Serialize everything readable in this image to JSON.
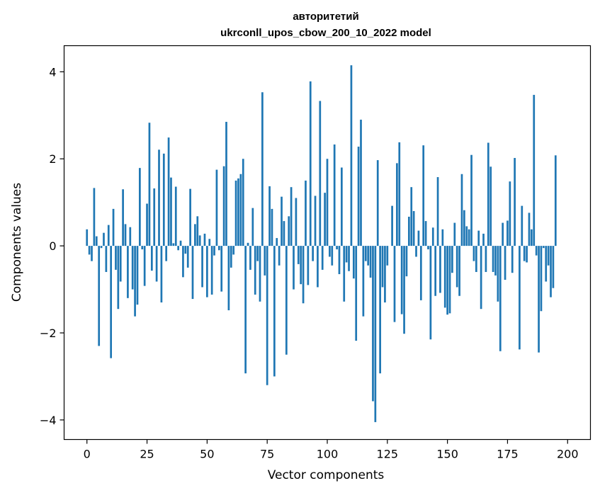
{
  "chart_data": {
    "type": "bar",
    "title": "авторитетий",
    "subtitle": "ukrconll_upos_cbow_200_10_2022 model",
    "xlabel": "Vector components",
    "ylabel": "Components values",
    "xlim": [
      -9.5,
      209.5
    ],
    "ylim": [
      -4.45,
      4.6
    ],
    "xticks": [
      0,
      25,
      50,
      75,
      100,
      125,
      150,
      175,
      200
    ],
    "yticks": [
      -4,
      -2,
      0,
      2,
      4
    ],
    "ytick_labels": [
      "−4",
      "−2",
      "0",
      "2",
      "4"
    ],
    "grid": false,
    "bar_color": "#1f77b4",
    "values": [
      0.38,
      -0.2,
      -0.35,
      1.33,
      0.22,
      -2.3,
      -0.05,
      0.3,
      -0.6,
      0.48,
      -2.58,
      0.85,
      -0.55,
      -1.45,
      -0.82,
      1.3,
      0.5,
      -1.2,
      0.43,
      -1.0,
      -1.62,
      -1.35,
      1.79,
      -0.08,
      -0.92,
      0.97,
      2.83,
      -0.57,
      1.32,
      -0.82,
      2.21,
      -1.3,
      2.12,
      -0.35,
      2.49,
      1.57,
      0.06,
      1.36,
      -0.1,
      0.12,
      -0.72,
      -0.18,
      -0.5,
      1.31,
      -1.22,
      0.5,
      0.68,
      0.24,
      -0.95,
      0.28,
      -1.18,
      0.16,
      -1.12,
      -0.22,
      1.75,
      -0.1,
      -1.05,
      1.83,
      2.85,
      -1.48,
      -0.5,
      -0.2,
      1.5,
      1.55,
      1.65,
      2.0,
      -2.93,
      0.07,
      -0.55,
      0.87,
      -1.12,
      -0.35,
      -1.28,
      3.53,
      -0.68,
      -3.2,
      1.37,
      0.85,
      -3.0,
      0.18,
      -0.45,
      1.13,
      0.57,
      -2.5,
      0.68,
      1.35,
      -1.0,
      1.1,
      -0.42,
      -0.88,
      -1.32,
      1.5,
      -0.9,
      3.78,
      -0.35,
      1.15,
      -0.95,
      3.33,
      -0.55,
      1.22,
      2.0,
      -0.25,
      -0.45,
      2.33,
      -0.08,
      -0.65,
      1.8,
      -1.28,
      -0.38,
      -0.58,
      4.15,
      -0.75,
      -2.18,
      2.28,
      2.9,
      -1.62,
      -0.35,
      -0.45,
      -0.73,
      -3.57,
      -4.05,
      1.97,
      -2.93,
      -0.95,
      -1.3,
      -0.45,
      0.0,
      0.92,
      -1.75,
      1.9,
      2.38,
      -1.57,
      -2.02,
      -0.7,
      0.67,
      1.35,
      0.8,
      -0.25,
      0.35,
      -1.25,
      2.31,
      0.57,
      -0.08,
      -2.15,
      0.42,
      -1.15,
      1.58,
      -1.08,
      0.38,
      -1.42,
      -1.58,
      -1.55,
      -0.62,
      0.53,
      -0.95,
      -1.15,
      1.65,
      0.82,
      0.45,
      0.38,
      2.09,
      -0.35,
      -0.6,
      0.35,
      -1.45,
      0.28,
      -0.6,
      2.37,
      1.82,
      -0.6,
      -0.68,
      -1.28,
      -2.42,
      0.53,
      -0.78,
      0.58,
      1.48,
      -0.62,
      2.02,
      0.0,
      -2.38,
      0.92,
      -0.35,
      -0.38,
      0.76,
      0.38,
      3.47,
      -0.22,
      -2.45,
      -1.5,
      -0.05,
      -0.82,
      -0.45,
      -1.18,
      -0.97,
      2.08
    ]
  }
}
